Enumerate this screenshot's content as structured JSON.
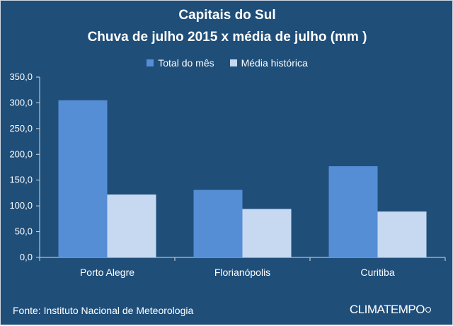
{
  "chart_data": {
    "type": "bar",
    "title": "Capitais do Sul",
    "subtitle": "Chuva de julho 2015 x média de julho (mm )",
    "categories": [
      "Porto Alegre",
      "Florianópolis",
      "Curitiba"
    ],
    "series": [
      {
        "name": "Total do mês",
        "values": [
          305,
          131,
          177
        ],
        "color": "#558ed5"
      },
      {
        "name": "Média histórica",
        "values": [
          122,
          94,
          89
        ],
        "color": "#c6d9f1"
      }
    ],
    "ylim": [
      0,
      350
    ],
    "y_ticks": [
      "0,0",
      "50,0",
      "100,0",
      "150,0",
      "200,0",
      "250,0",
      "300,0",
      "350,0"
    ],
    "xlabel": "",
    "ylabel": "",
    "grid": false,
    "legend_position": "top"
  },
  "footer": {
    "source": "Fonte: Instituto Nacional de Meteorologia",
    "logo_text": "CLIMATEMPO"
  },
  "colors": {
    "background": "#1f4e79",
    "text": "#ffffff",
    "axis": "#d9d9d9"
  }
}
